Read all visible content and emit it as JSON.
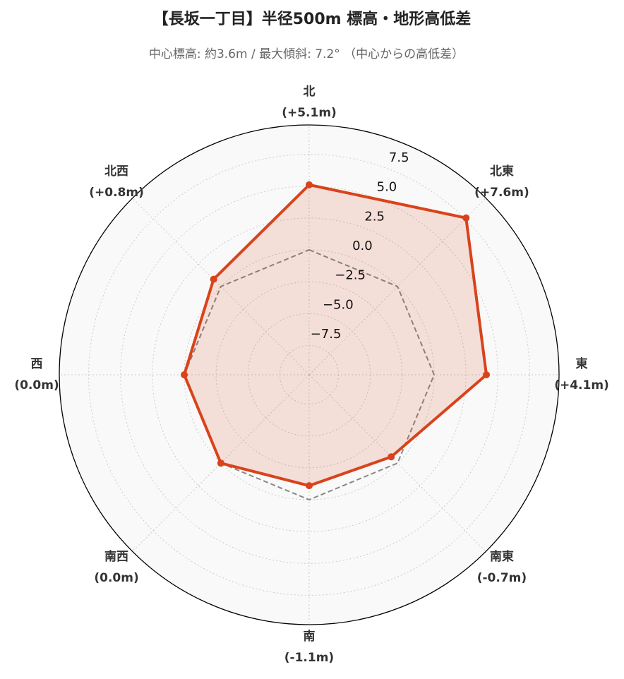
{
  "chart_data": {
    "type": "radar",
    "title": "【長坂一丁目】半径500m 標高・地形高低差",
    "subtitle": "中心標高: 約3.6m / 最大傾斜: 7.2° （中心からの高低差）",
    "categories": [
      "北",
      "北東",
      "東",
      "南東",
      "南",
      "南西",
      "西",
      "北西"
    ],
    "values": [
      5.1,
      7.6,
      4.1,
      -0.7,
      -1.1,
      0.0,
      0.0,
      0.8
    ],
    "value_labels": [
      "(+5.1m)",
      "(+7.6m)",
      "(+4.1m)",
      "(-0.7m)",
      "(-1.1m)",
      "(0.0m)",
      "(0.0m)",
      "(+0.8m)"
    ],
    "color": "#d8431b",
    "reference_value": 0,
    "ylim": [
      -9.8,
      9.8
    ],
    "yticks": [
      {
        "value": -7.5,
        "label": "−7.5"
      },
      {
        "value": -5,
        "label": "−5.0"
      },
      {
        "value": -2.5,
        "label": "−2.5"
      },
      {
        "value": 0,
        "label": "0.0"
      },
      {
        "value": 2.5,
        "label": "2.5"
      },
      {
        "value": 5,
        "label": "5.0"
      },
      {
        "value": 7.5,
        "label": "7.5"
      }
    ],
    "grid": true
  }
}
